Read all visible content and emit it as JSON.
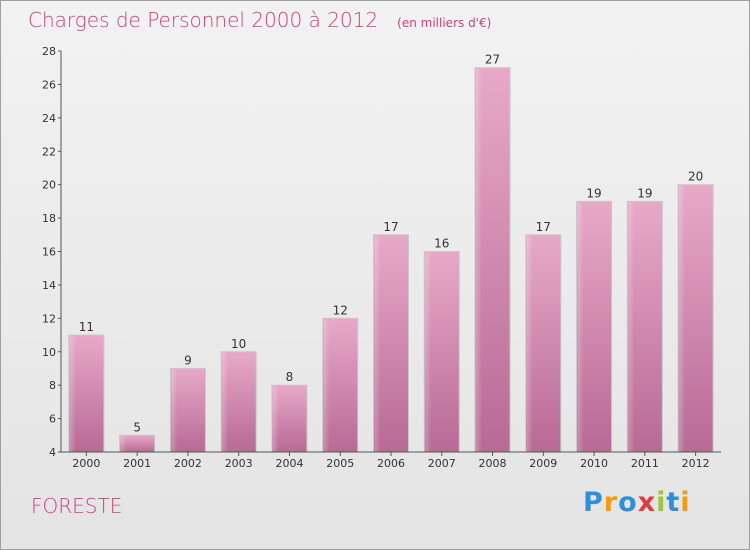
{
  "title": "Charges de Personnel 2000 à 2012",
  "subtitle": "(en milliers d'€)",
  "footer_label": "FORESTE",
  "logo": {
    "text": "Proxiti",
    "letters": [
      "P",
      "r",
      "o",
      "x",
      "i",
      "t",
      "i"
    ],
    "colors": [
      "#2f8fd8",
      "#f39c12",
      "#2f8fd8",
      "#e23b3b",
      "#9bc53d",
      "#2f8fd8",
      "#f39c12"
    ]
  },
  "chart_data": {
    "type": "bar",
    "categories": [
      "2000",
      "2001",
      "2002",
      "2003",
      "2004",
      "2005",
      "2006",
      "2007",
      "2008",
      "2009",
      "2010",
      "2011",
      "2012"
    ],
    "values": [
      11,
      5,
      9,
      10,
      8,
      12,
      17,
      16,
      27,
      17,
      19,
      19,
      20
    ],
    "ylim": [
      4,
      28
    ],
    "yticks": [
      4,
      6,
      8,
      10,
      12,
      14,
      16,
      18,
      20,
      22,
      24,
      26,
      28
    ],
    "grid": false,
    "bar_color": "#d47aa6"
  }
}
